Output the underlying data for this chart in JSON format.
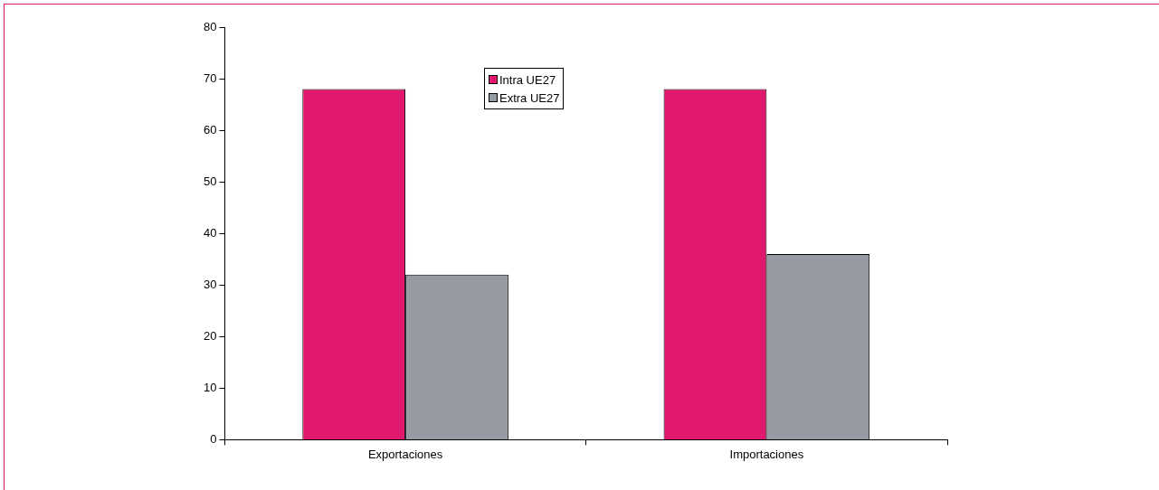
{
  "chart_data": {
    "type": "bar",
    "categories": [
      "Exportaciones",
      "Importaciones"
    ],
    "series": [
      {
        "name": "Intra UE27",
        "color": "#e0196e",
        "values": [
          68,
          68
        ]
      },
      {
        "name": "Extra UE27",
        "color": "#969aa2",
        "values": [
          32,
          36
        ]
      }
    ],
    "ylim": [
      0,
      80
    ],
    "yticks": [
      0,
      10,
      20,
      30,
      40,
      50,
      60,
      70,
      80
    ],
    "grid": false,
    "legend": "top"
  }
}
